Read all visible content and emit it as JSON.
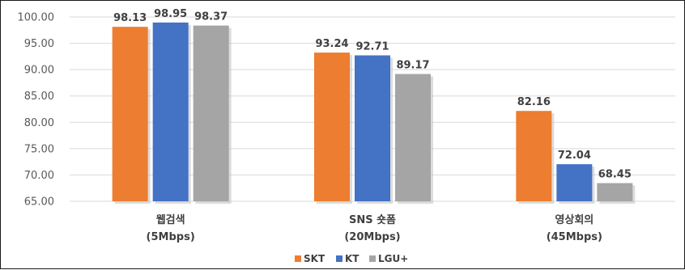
{
  "chart_data": {
    "type": "bar",
    "categories": [
      {
        "line1": "웹검색",
        "line2": "(5Mbps)"
      },
      {
        "line1": "SNS 숏폼",
        "line2": "(20Mbps)"
      },
      {
        "line1": "영상회의",
        "line2": "(45Mbps)"
      }
    ],
    "series": [
      {
        "name": "SKT",
        "color": "#ED7D31",
        "values": [
          98.13,
          93.24,
          82.16
        ]
      },
      {
        "name": "KT",
        "color": "#4472C4",
        "values": [
          98.95,
          92.71,
          72.04
        ]
      },
      {
        "name": "LGU+",
        "color": "#A5A5A5",
        "values": [
          98.37,
          89.17,
          68.45
        ]
      }
    ],
    "ylim": [
      65.0,
      100.0
    ],
    "yticks": [
      "65.00",
      "70.00",
      "75.00",
      "80.00",
      "85.00",
      "90.00",
      "95.00",
      "100.00"
    ],
    "gridlines": true,
    "legend_position": "bottom-center"
  }
}
